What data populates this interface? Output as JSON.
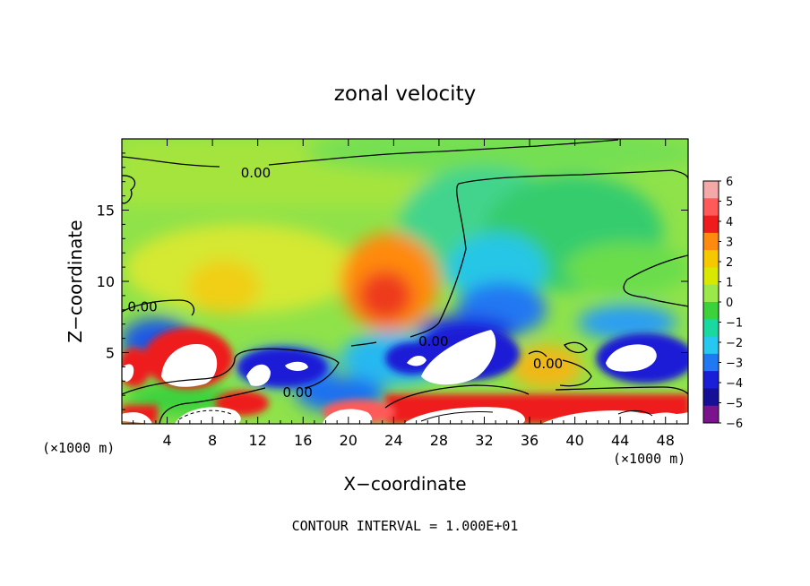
{
  "chart_data": {
    "type": "heatmap",
    "title": "zonal velocity",
    "xlabel": "X−coordinate",
    "ylabel": "Z−coordinate",
    "x_unit_left": "(×1000 m)",
    "x_unit_right": "(×1000 m)",
    "footer": "CONTOUR INTERVAL = 1.000E+01",
    "xlim": [
      0,
      50
    ],
    "ylim": [
      0,
      20
    ],
    "x_ticks": [
      "4",
      "8",
      "12",
      "16",
      "20",
      "24",
      "28",
      "32",
      "36",
      "40",
      "44",
      "48"
    ],
    "y_ticks": [
      "5",
      "10",
      "15"
    ],
    "colorbar": {
      "min": -6,
      "max": 6,
      "labels": [
        "6",
        "5",
        "4",
        "3",
        "2",
        "1",
        "0",
        "−1",
        "−2",
        "−3",
        "−4",
        "−5",
        "−6"
      ],
      "colors": [
        "#f4a8a8",
        "#ff5a5a",
        "#ee1c1c",
        "#ff8a10",
        "#f5c800",
        "#d8e800",
        "#9ae84a",
        "#3cd23c",
        "#19d8a0",
        "#27c8f0",
        "#2078f2",
        "#1a1ed6",
        "#161096",
        "#7a148c"
      ]
    },
    "contour_labels": [
      {
        "text": "0.00",
        "x": 10.5,
        "z": 17.6
      },
      {
        "text": "0.00",
        "x": 0.5,
        "z": 8.2
      },
      {
        "text": "0.00",
        "x": 26.2,
        "z": 5.8
      },
      {
        "text": "0.00",
        "x": 14.2,
        "z": 2.2
      },
      {
        "text": "0.00",
        "x": 36.3,
        "z": 4.2
      }
    ]
  }
}
